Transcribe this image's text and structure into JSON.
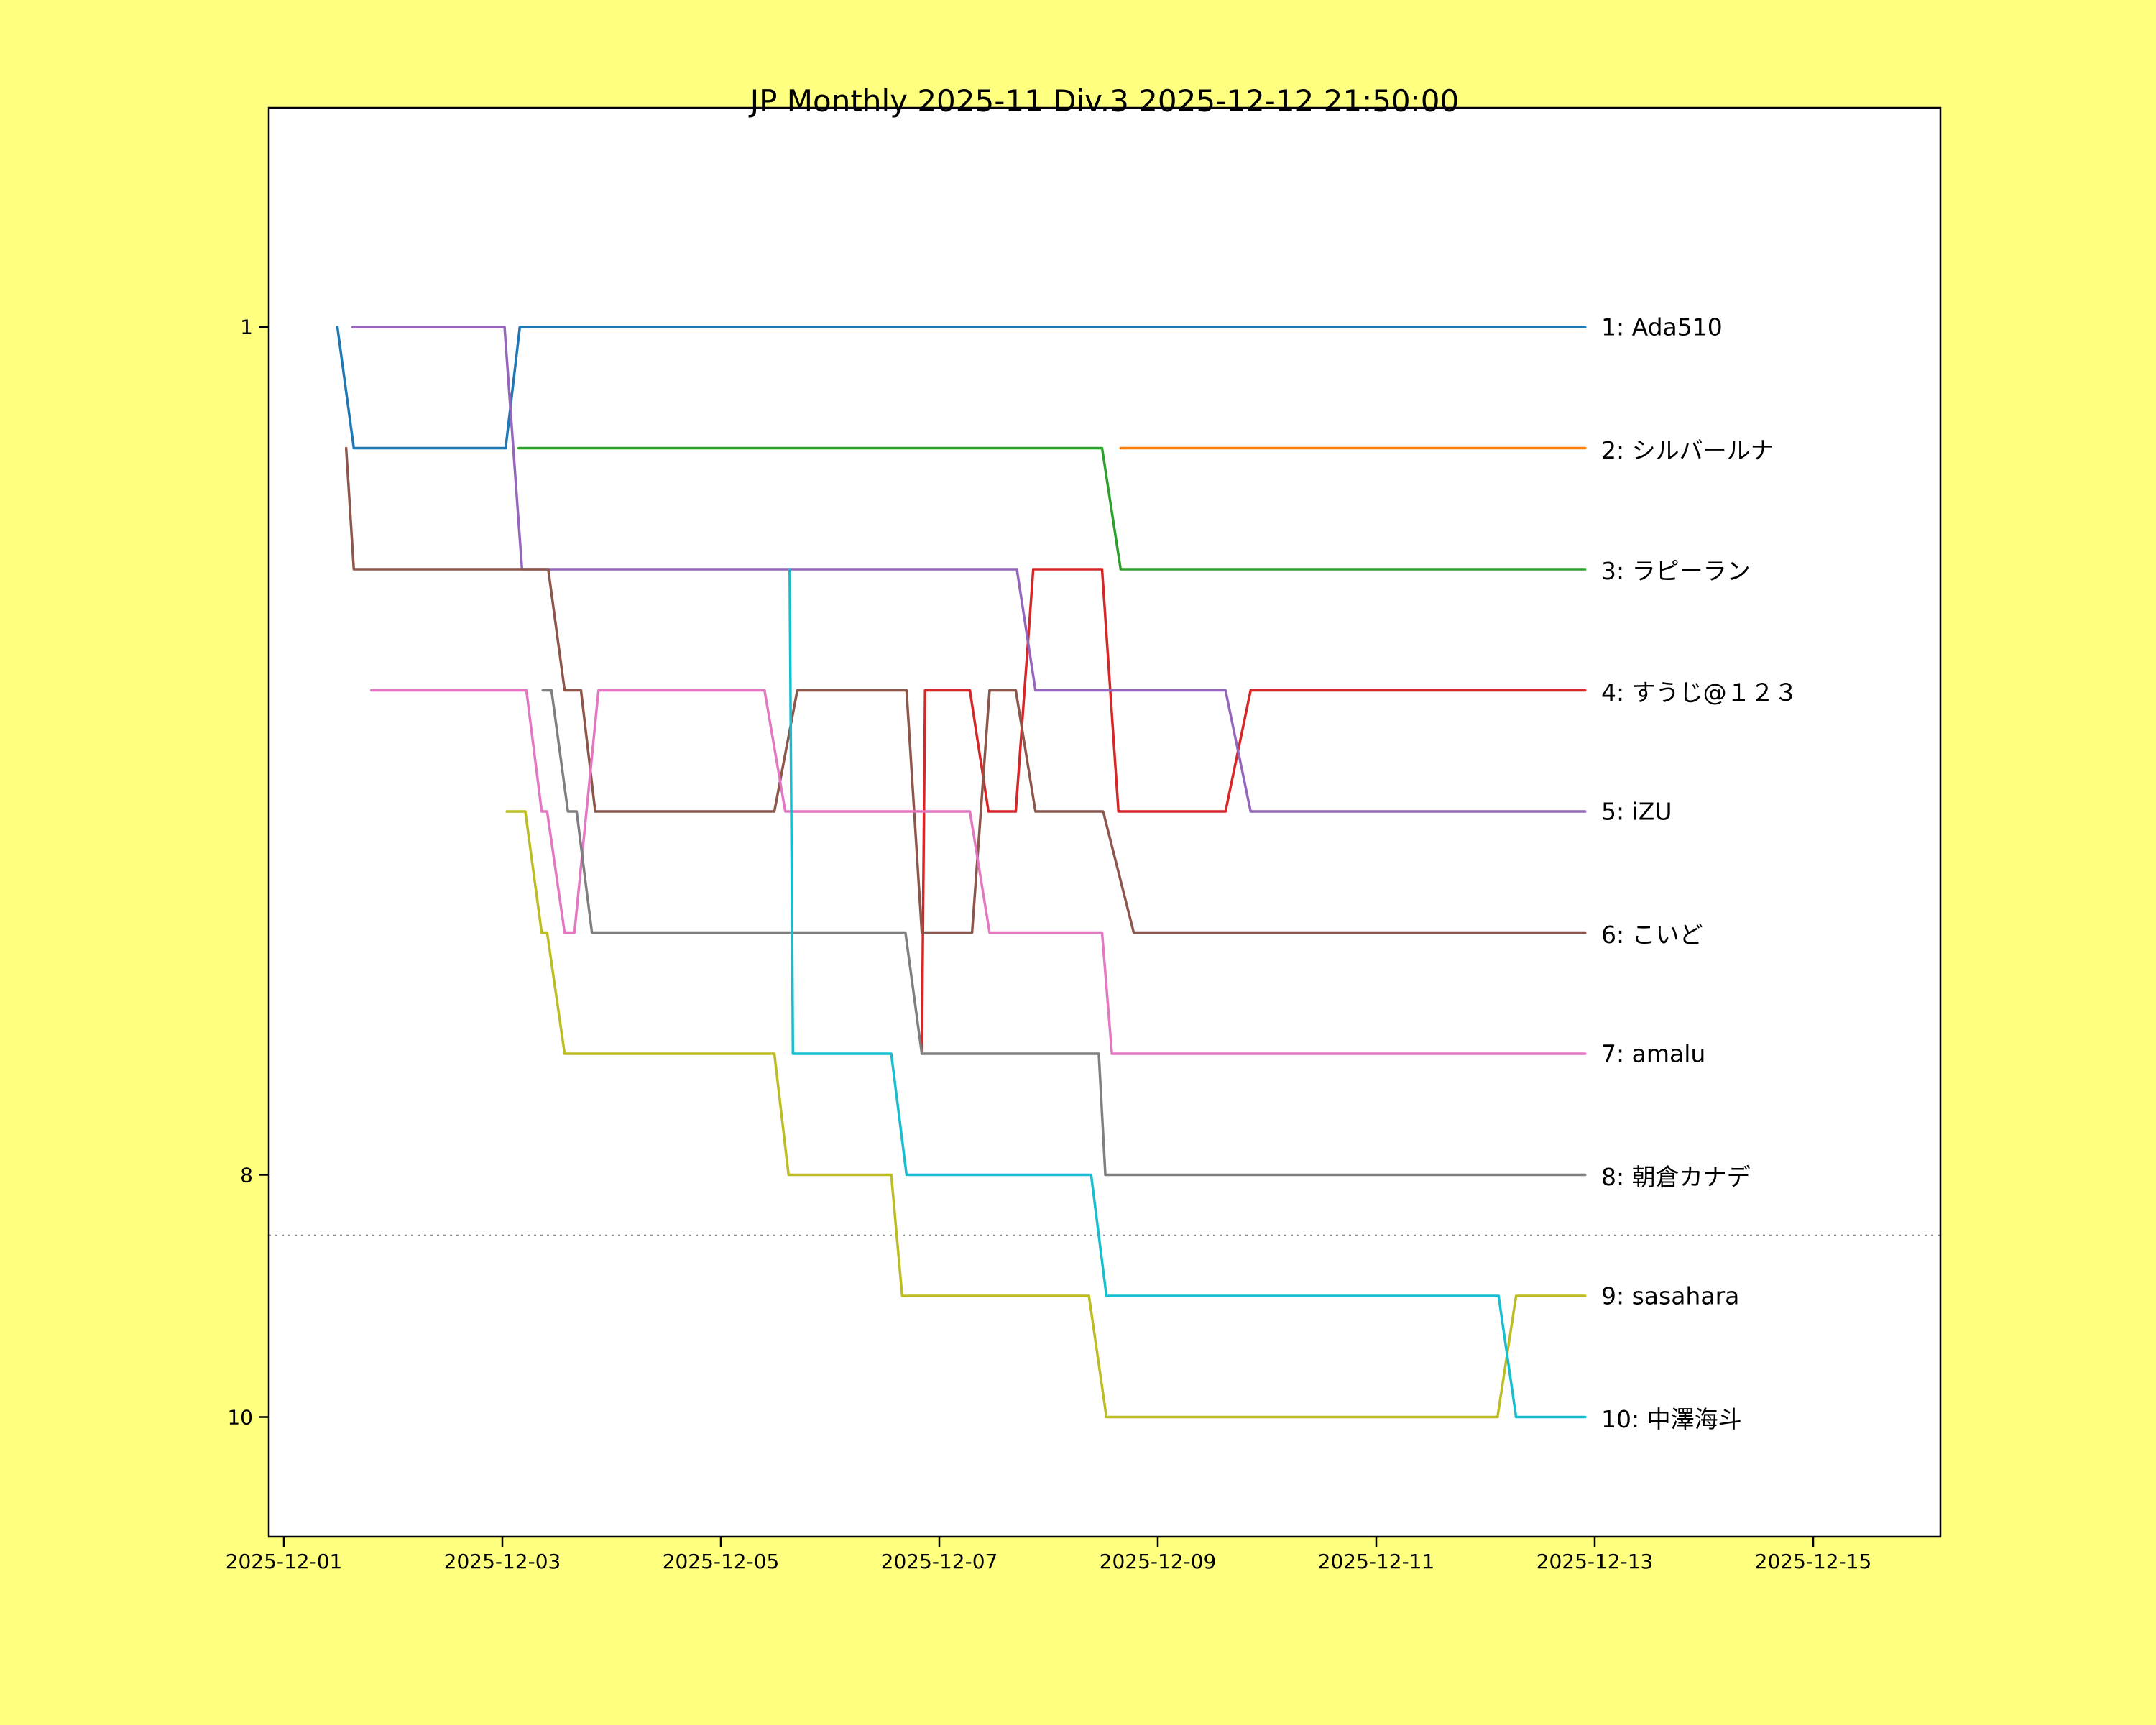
{
  "title": "JP Monthly 2025-11 Div.3 2025-12-12 21:50:00",
  "colors": {
    "figure_background": "#ffff80",
    "plot_background": "#ffffff",
    "spine": "#000000",
    "relegation_line": "#888888",
    "text": "#000000"
  },
  "chart_data": {
    "type": "line",
    "title": "JP Monthly 2025-11 Div.3 2025-12-12 21:50:00",
    "xlabel": "",
    "ylabel": "",
    "x_axis": {
      "start_date": "2025-12-01",
      "ticks": [
        {
          "day": 0,
          "label": "2025-12-01"
        },
        {
          "day": 2,
          "label": "2025-12-03"
        },
        {
          "day": 4,
          "label": "2025-12-05"
        },
        {
          "day": 6,
          "label": "2025-12-07"
        },
        {
          "day": 8,
          "label": "2025-12-09"
        },
        {
          "day": 10,
          "label": "2025-12-11"
        },
        {
          "day": 12,
          "label": "2025-12-13"
        },
        {
          "day": 14,
          "label": "2025-12-15"
        }
      ],
      "xlim_days": [
        -0.14,
        15.16
      ]
    },
    "y_axis": {
      "unit": "rank",
      "inverted": true,
      "ticks": [
        {
          "rank": 1,
          "label": "1"
        },
        {
          "rank": 8,
          "label": "8"
        },
        {
          "rank": 10,
          "label": "10"
        }
      ],
      "ylim": [
        1,
        10
      ]
    },
    "grid": false,
    "legend_position": "right-of-lines",
    "relegation_line_rank": 8.5,
    "now_day": 11.913,
    "series": [
      {
        "final_rank": 1,
        "name": "Ada510",
        "label": "1: Ada510",
        "color": "#1f77b4",
        "points": [
          [
            0.49,
            1
          ],
          [
            0.64,
            2
          ],
          [
            2.03,
            2
          ],
          [
            2.16,
            1
          ],
          [
            11.913,
            1
          ]
        ]
      },
      {
        "final_rank": 2,
        "name": "シルバールナ",
        "label": "2: シルバールナ",
        "color": "#ff7f0e",
        "points": [
          [
            7.66,
            2
          ],
          [
            11.913,
            2
          ]
        ]
      },
      {
        "final_rank": 3,
        "name": "ラピーラン",
        "label": "3: ラピーラン",
        "color": "#2ca02c",
        "points": [
          [
            2.15,
            2
          ],
          [
            7.49,
            2
          ],
          [
            7.66,
            3
          ],
          [
            11.913,
            3
          ]
        ]
      },
      {
        "final_rank": 4,
        "name": "すうじ@１２３",
        "label": "4: すうじ@１２３",
        "color": "#d62728",
        "points": [
          [
            5.84,
            7
          ],
          [
            5.87,
            4
          ],
          [
            6.28,
            4
          ],
          [
            6.45,
            5
          ],
          [
            6.7,
            5
          ],
          [
            6.86,
            3
          ],
          [
            7.49,
            3
          ],
          [
            7.64,
            5
          ],
          [
            8.62,
            5
          ],
          [
            8.85,
            4
          ],
          [
            11.913,
            4
          ]
        ]
      },
      {
        "final_rank": 5,
        "name": "iZU",
        "label": "5: iZU",
        "color": "#9467bd",
        "points": [
          [
            0.63,
            1
          ],
          [
            2.02,
            1
          ],
          [
            2.18,
            3
          ],
          [
            6.71,
            3
          ],
          [
            6.88,
            4
          ],
          [
            8.62,
            4
          ],
          [
            8.85,
            5
          ],
          [
            11.913,
            5
          ]
        ]
      },
      {
        "final_rank": 6,
        "name": "こいど",
        "label": "6: こいど",
        "color": "#8c564b",
        "points": [
          [
            0.57,
            2
          ],
          [
            0.64,
            3
          ],
          [
            2.42,
            3
          ],
          [
            2.57,
            4
          ],
          [
            2.72,
            4
          ],
          [
            2.85,
            5
          ],
          [
            4.49,
            5
          ],
          [
            4.7,
            4
          ],
          [
            5.7,
            4
          ],
          [
            5.84,
            6
          ],
          [
            6.3,
            6
          ],
          [
            6.46,
            4
          ],
          [
            6.7,
            4
          ],
          [
            6.88,
            5
          ],
          [
            7.5,
            5
          ],
          [
            7.78,
            6
          ],
          [
            11.913,
            6
          ]
        ]
      },
      {
        "final_rank": 7,
        "name": "amalu",
        "label": "7: amalu",
        "color": "#e377c2",
        "points": [
          [
            0.8,
            4
          ],
          [
            2.22,
            4
          ],
          [
            2.36,
            5
          ],
          [
            2.41,
            5
          ],
          [
            2.57,
            6
          ],
          [
            2.66,
            6
          ],
          [
            2.88,
            4
          ],
          [
            4.4,
            4
          ],
          [
            4.59,
            5
          ],
          [
            6.28,
            5
          ],
          [
            6.46,
            6
          ],
          [
            7.49,
            6
          ],
          [
            7.58,
            7
          ],
          [
            11.913,
            7
          ]
        ]
      },
      {
        "final_rank": 8,
        "name": "朝倉カナデ",
        "label": "8: 朝倉カナデ",
        "color": "#7f7f7f",
        "points": [
          [
            2.37,
            4
          ],
          [
            2.45,
            4
          ],
          [
            2.6,
            5
          ],
          [
            2.68,
            5
          ],
          [
            2.82,
            6
          ],
          [
            5.69,
            6
          ],
          [
            5.84,
            7
          ],
          [
            7.46,
            7
          ],
          [
            7.52,
            8
          ],
          [
            11.913,
            8
          ]
        ]
      },
      {
        "final_rank": 9,
        "name": "sasahara",
        "label": "9: sasahara",
        "color": "#bcbd22",
        "points": [
          [
            2.04,
            5
          ],
          [
            2.21,
            5
          ],
          [
            2.36,
            6
          ],
          [
            2.41,
            6
          ],
          [
            2.57,
            7
          ],
          [
            4.49,
            7
          ],
          [
            4.62,
            8
          ],
          [
            5.56,
            8
          ],
          [
            5.66,
            9
          ],
          [
            7.37,
            9
          ],
          [
            7.53,
            10
          ],
          [
            11.11,
            10
          ],
          [
            11.28,
            9
          ],
          [
            11.913,
            9
          ]
        ]
      },
      {
        "final_rank": 10,
        "name": "中澤海斗",
        "label": "10: 中澤海斗",
        "color": "#17becf",
        "points": [
          [
            4.63,
            3
          ],
          [
            4.66,
            7
          ],
          [
            5.56,
            7
          ],
          [
            5.7,
            8
          ],
          [
            7.39,
            8
          ],
          [
            7.53,
            9
          ],
          [
            11.12,
            9
          ],
          [
            11.28,
            10
          ],
          [
            11.913,
            10
          ]
        ]
      }
    ]
  }
}
